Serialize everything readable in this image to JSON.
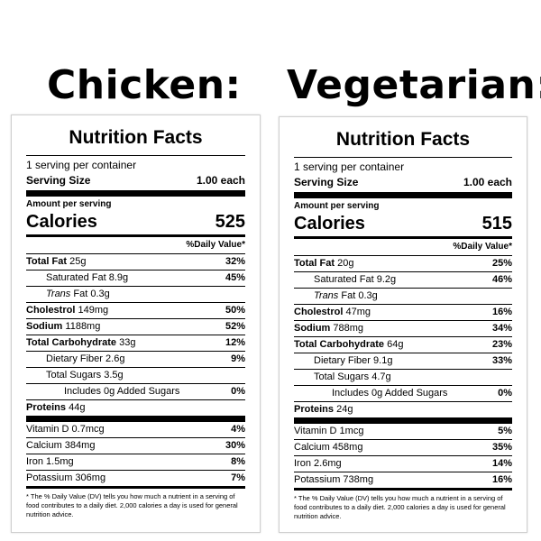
{
  "headings": {
    "left": "Chicken:",
    "right": "Vegetarian:"
  },
  "labels": {
    "title": "Nutrition Facts",
    "servings": "1 serving per container",
    "serving_size_label": "Serving Size",
    "serving_size_value": "1.00 each",
    "amount_per_serving": "Amount per serving",
    "calories": "Calories",
    "daily_value_header": "%Daily Value*",
    "total_fat": "Total Fat",
    "saturated_fat": "Saturated Fat",
    "trans_prefix": "Trans",
    "trans_suffix": "Fat",
    "cholestrol": "Cholestrol",
    "sodium": "Sodium",
    "total_carbohydrate": "Total Carbohydrate",
    "dietary_fiber": "Dietary Fiber",
    "total_sugars": "Total Sugars",
    "added_sugars": "Includes 0g Added Sugars",
    "proteins": "Proteins",
    "vitamin_d": "Vitamin D",
    "calcium": "Calcium",
    "iron": "Iron",
    "potassium": "Potassium",
    "footnote": "* The % Daily Value (DV) tells you how much a nutrient in a serving of food contributes to a daily diet. 2,000 calories a day is used for general nutrition advice."
  },
  "chicken": {
    "calories": "525",
    "total_fat": {
      "amount": "25g",
      "dv": "32%"
    },
    "saturated_fat": {
      "amount": "8.9g",
      "dv": "45%"
    },
    "trans_fat": {
      "amount": "0.3g"
    },
    "cholestrol": {
      "amount": "149mg",
      "dv": "50%"
    },
    "sodium": {
      "amount": "1188mg",
      "dv": "52%"
    },
    "total_carbohydrate": {
      "amount": "33g",
      "dv": "12%"
    },
    "dietary_fiber": {
      "amount": "2.6g",
      "dv": "9%"
    },
    "total_sugars": {
      "amount": "3.5g"
    },
    "added_sugars": {
      "dv": "0%"
    },
    "proteins": {
      "amount": "44g"
    },
    "vitamin_d": {
      "amount": "0.7mcg",
      "dv": "4%"
    },
    "calcium": {
      "amount": "384mg",
      "dv": "30%"
    },
    "iron": {
      "amount": "1.5mg",
      "dv": "8%"
    },
    "potassium": {
      "amount": "306mg",
      "dv": "7%"
    }
  },
  "vegetarian": {
    "calories": "515",
    "total_fat": {
      "amount": "20g",
      "dv": "25%"
    },
    "saturated_fat": {
      "amount": "9.2g",
      "dv": "46%"
    },
    "trans_fat": {
      "amount": "0.3g"
    },
    "cholestrol": {
      "amount": "47mg",
      "dv": "16%"
    },
    "sodium": {
      "amount": "788mg",
      "dv": "34%"
    },
    "total_carbohydrate": {
      "amount": "64g",
      "dv": "23%"
    },
    "dietary_fiber": {
      "amount": "9.1g",
      "dv": "33%"
    },
    "total_sugars": {
      "amount": "4.7g"
    },
    "added_sugars": {
      "dv": "0%"
    },
    "proteins": {
      "amount": "24g"
    },
    "vitamin_d": {
      "amount": "1mcg",
      "dv": "5%"
    },
    "calcium": {
      "amount": "458mg",
      "dv": "35%"
    },
    "iron": {
      "amount": "2.6mg",
      "dv": "14%"
    },
    "potassium": {
      "amount": "738mg",
      "dv": "16%"
    }
  }
}
